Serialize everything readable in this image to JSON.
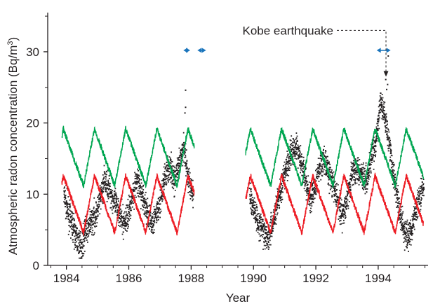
{
  "chart_data": {
    "type": "scatter",
    "title": "",
    "xlabel": "Year",
    "ylabel": "Atmospheric radon concentration (Bq/m",
    "ylabel_sup": "3",
    "ylabel_close": ")",
    "xlim": [
      1983.4,
      1995.6
    ],
    "ylim": [
      0,
      35.5
    ],
    "x_ticks": [
      1984,
      1986,
      1988,
      1990,
      1992,
      1994
    ],
    "y_ticks": [
      0,
      10,
      20,
      30
    ],
    "grid": false,
    "legend": "none",
    "data_gap": [
      1988.1,
      1989.7
    ],
    "series": [
      {
        "kind": "observed-points",
        "color": "#231f20",
        "x": [
          1983.9,
          1984.0,
          1984.15,
          1984.3,
          1984.45,
          1984.6,
          1984.75,
          1984.9,
          1985.05,
          1985.2,
          1985.35,
          1985.5,
          1985.65,
          1985.8,
          1985.95,
          1986.1,
          1986.25,
          1986.4,
          1986.55,
          1986.7,
          1986.85,
          1987.0,
          1987.15,
          1987.3,
          1987.45,
          1987.6,
          1987.75,
          1987.9,
          1988.05,
          1989.85,
          1990.0,
          1990.15,
          1990.3,
          1990.45,
          1990.6,
          1990.75,
          1990.9,
          1991.05,
          1991.2,
          1991.35,
          1991.5,
          1991.65,
          1991.8,
          1991.95,
          1992.1,
          1992.25,
          1992.4,
          1992.55,
          1992.7,
          1992.85,
          1993.0,
          1993.15,
          1993.3,
          1993.45,
          1993.6,
          1993.75,
          1993.9,
          1994.05,
          1994.2,
          1994.35,
          1994.5,
          1994.65,
          1994.8,
          1994.95,
          1995.1,
          1995.25,
          1995.4
        ],
        "y": [
          10,
          8,
          6,
          4,
          2.5,
          5,
          6,
          7,
          9,
          12,
          11,
          9,
          8,
          6,
          7,
          10,
          12,
          10,
          8,
          6,
          7,
          9,
          13,
          14,
          12,
          14,
          17,
          12,
          10,
          10,
          8,
          6,
          5,
          4,
          6,
          9,
          11,
          14,
          16,
          17,
          15,
          12,
          9,
          11,
          14,
          15,
          13,
          11,
          9,
          7,
          10,
          13,
          14,
          13,
          12,
          15,
          17,
          23,
          21,
          17,
          12,
          8,
          5,
          4,
          6,
          9,
          11
        ]
      },
      {
        "kind": "seasonal-upper",
        "color": "#00a651",
        "amplitude": 4,
        "center": 15.2,
        "peak_phase": 0.9,
        "valley_phase": 0.55
      },
      {
        "kind": "seasonal-lower",
        "color": "#ed1c24",
        "amplitude": 4,
        "center": 8.6,
        "peak_phase": 0.9,
        "valley_phase": 0.55
      }
    ],
    "markers": [
      {
        "kind": "double-arrow",
        "color": "#1b75bc",
        "x": [
          1987.75,
          1987.97
        ],
        "y": 30.2
      },
      {
        "kind": "double-arrow",
        "color": "#1b75bc",
        "x": [
          1988.2,
          1988.48
        ],
        "y": 30.2
      },
      {
        "kind": "double-arrow",
        "color": "#1b75bc",
        "x": [
          1993.95,
          1994.4
        ],
        "y": 30.2
      }
    ],
    "annotation": {
      "text": "Kobe earthquake",
      "points_to_x": 1994.25,
      "points_to_y": 26.5,
      "label_y": 33.0
    }
  }
}
